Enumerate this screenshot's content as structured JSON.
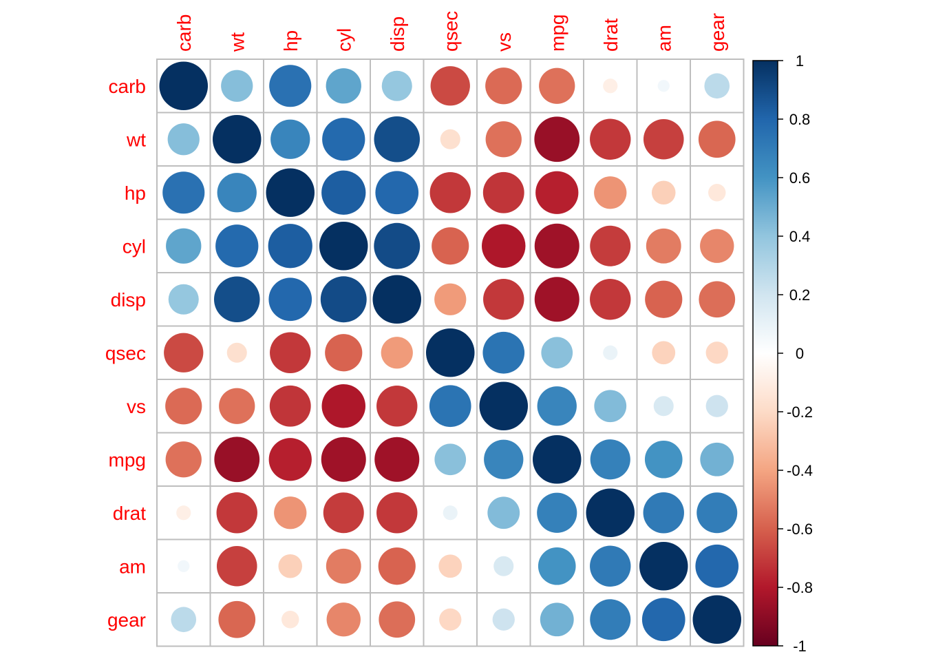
{
  "chart_data": {
    "type": "heatmap",
    "title": "",
    "variables": [
      "carb",
      "wt",
      "hp",
      "cyl",
      "disp",
      "qsec",
      "vs",
      "mpg",
      "drat",
      "am",
      "gear"
    ],
    "matrix": [
      [
        1.0,
        0.43,
        0.75,
        0.53,
        0.39,
        -0.66,
        -0.57,
        -0.55,
        -0.09,
        0.06,
        0.27
      ],
      [
        0.43,
        1.0,
        0.66,
        0.78,
        0.89,
        -0.17,
        -0.55,
        -0.87,
        -0.71,
        -0.69,
        -0.58
      ],
      [
        0.75,
        0.66,
        1.0,
        0.83,
        0.79,
        -0.71,
        -0.72,
        -0.78,
        -0.45,
        -0.24,
        -0.13
      ],
      [
        0.53,
        0.78,
        0.83,
        1.0,
        0.9,
        -0.59,
        -0.81,
        -0.85,
        -0.7,
        -0.52,
        -0.49
      ],
      [
        0.39,
        0.89,
        0.79,
        0.9,
        1.0,
        -0.43,
        -0.71,
        -0.85,
        -0.71,
        -0.59,
        -0.56
      ],
      [
        -0.66,
        -0.17,
        -0.71,
        -0.59,
        -0.43,
        1.0,
        0.74,
        0.42,
        0.09,
        -0.23,
        -0.21
      ],
      [
        -0.57,
        -0.55,
        -0.72,
        -0.81,
        -0.71,
        0.74,
        1.0,
        0.66,
        0.44,
        0.17,
        0.21
      ],
      [
        -0.55,
        -0.87,
        -0.78,
        -0.85,
        -0.85,
        0.42,
        0.66,
        1.0,
        0.68,
        0.6,
        0.48
      ],
      [
        -0.09,
        -0.71,
        -0.45,
        -0.7,
        -0.71,
        0.09,
        0.44,
        0.68,
        1.0,
        0.71,
        0.7
      ],
      [
        0.06,
        -0.69,
        -0.24,
        -0.52,
        -0.59,
        -0.23,
        0.17,
        0.6,
        0.71,
        1.0,
        0.79
      ],
      [
        0.27,
        -0.58,
        -0.13,
        -0.49,
        -0.56,
        -0.21,
        0.21,
        0.48,
        0.7,
        0.79,
        1.0
      ]
    ],
    "color_scale": {
      "min": -1,
      "max": 1,
      "ticks": [
        "1",
        "0.8",
        "0.6",
        "0.4",
        "0.2",
        "0",
        "-0.2",
        "-0.4",
        "-0.6",
        "-0.8",
        "-1"
      ],
      "stops": [
        "#67001F",
        "#B2182B",
        "#D6604D",
        "#F4A582",
        "#FDDBC7",
        "#FFFFFF",
        "#D1E5F0",
        "#92C5DE",
        "#4393C3",
        "#2166AC",
        "#053061"
      ]
    },
    "label_color": "#FF0000",
    "grid_color": "#BEBEBE",
    "legend": "right"
  }
}
